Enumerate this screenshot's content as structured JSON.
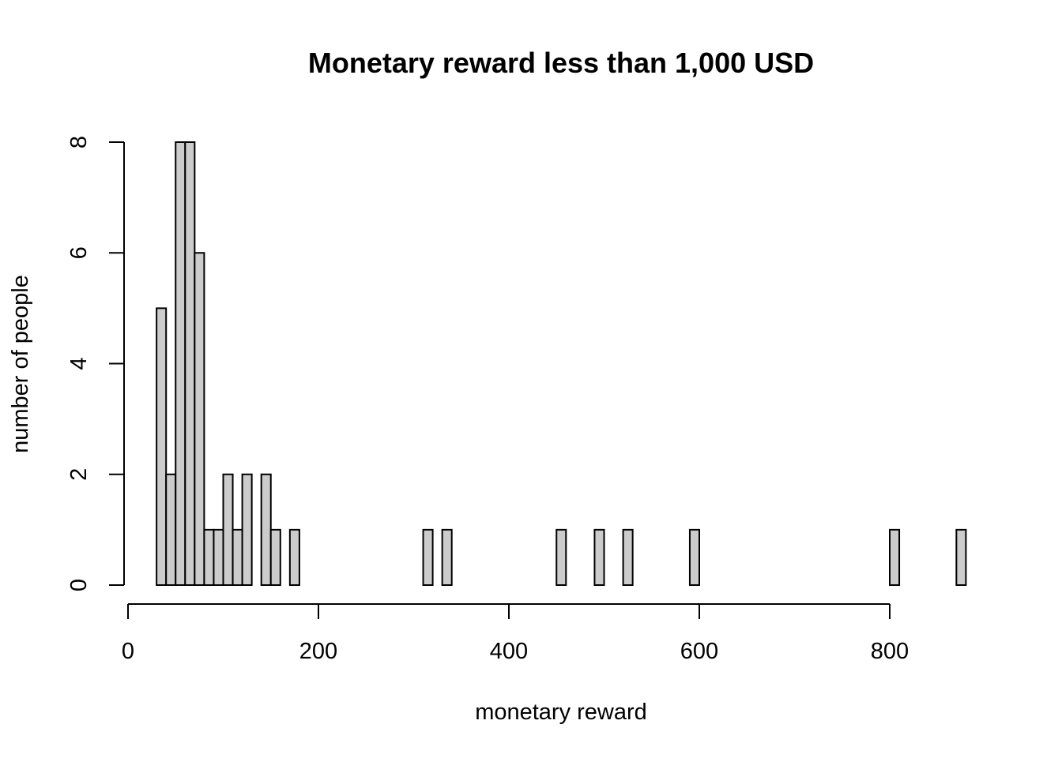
{
  "chart_data": {
    "type": "bar",
    "title": "Monetary reward less than 1,000 USD",
    "xlabel": "monetary reward",
    "ylabel": "number of people",
    "bin_width": 10,
    "bins_start": 30,
    "bins_end": 880,
    "xlim": [
      0,
      880
    ],
    "ylim": [
      0,
      8
    ],
    "x_ticks": [
      0,
      200,
      400,
      600,
      800
    ],
    "y_ticks": [
      0,
      2,
      4,
      6,
      8
    ],
    "x_tick_labels": [
      "0",
      "200",
      "400",
      "600",
      "800"
    ],
    "y_tick_labels": [
      "0",
      "2",
      "4",
      "6",
      "8"
    ],
    "bar_fill": "#cccccc",
    "bar_stroke": "#000000",
    "nonzero_bins": [
      {
        "x": 30,
        "count": 5
      },
      {
        "x": 40,
        "count": 2
      },
      {
        "x": 50,
        "count": 8
      },
      {
        "x": 60,
        "count": 8
      },
      {
        "x": 70,
        "count": 6
      },
      {
        "x": 80,
        "count": 1
      },
      {
        "x": 90,
        "count": 1
      },
      {
        "x": 100,
        "count": 2
      },
      {
        "x": 110,
        "count": 1
      },
      {
        "x": 120,
        "count": 2
      },
      {
        "x": 140,
        "count": 2
      },
      {
        "x": 150,
        "count": 1
      },
      {
        "x": 170,
        "count": 1
      },
      {
        "x": 310,
        "count": 1
      },
      {
        "x": 330,
        "count": 1
      },
      {
        "x": 450,
        "count": 1
      },
      {
        "x": 490,
        "count": 1
      },
      {
        "x": 520,
        "count": 1
      },
      {
        "x": 590,
        "count": 1
      },
      {
        "x": 800,
        "count": 1
      },
      {
        "x": 870,
        "count": 1
      }
    ]
  }
}
